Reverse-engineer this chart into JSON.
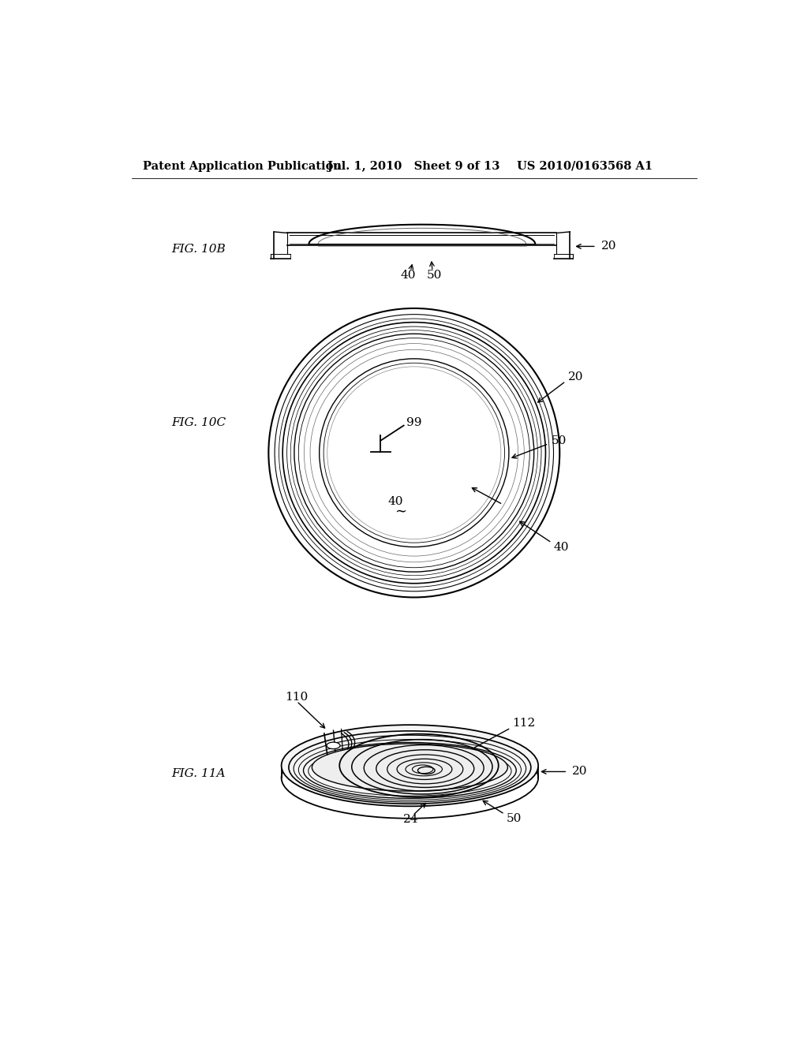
{
  "background_color": "#ffffff",
  "header_left": "Patent Application Publication",
  "header_mid": "Jul. 1, 2010   Sheet 9 of 13",
  "header_right": "US 2010/0163568 A1",
  "fig10b_label": "FIG. 10B",
  "fig10c_label": "FIG. 10C",
  "fig11a_label": "FIG. 11A",
  "line_color": "#000000"
}
